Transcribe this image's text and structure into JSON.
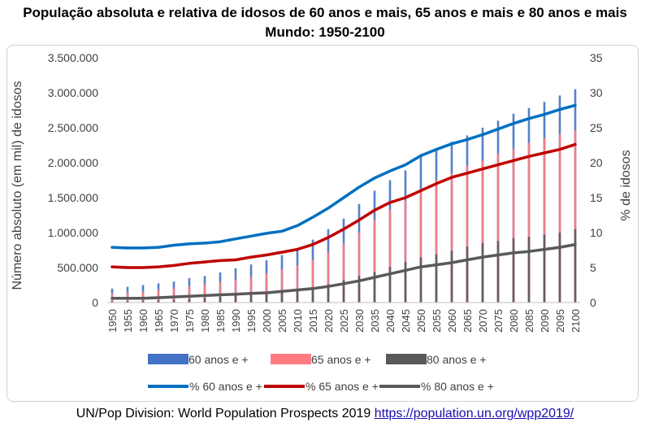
{
  "chart_data": {
    "type": "bar+line",
    "title": "População absoluta e relativa de idosos de 60 anos e mais, 65 anos e mais e 80 anos e mais",
    "subtitle": "Mundo: 1950-2100",
    "ylabel": "Número absoluto (em mil) de idosos",
    "y2label": "% de idosos",
    "ylim": [
      0,
      3500000
    ],
    "y2lim": [
      0,
      35
    ],
    "yticks": [
      "0",
      "500.000",
      "1.000.000",
      "1.500.000",
      "2.000.000",
      "2.500.000",
      "3.000.000",
      "3.500.000"
    ],
    "y2ticks": [
      "0",
      "5",
      "10",
      "15",
      "20",
      "25",
      "30",
      "35"
    ],
    "xticks": [
      "1950",
      "1955",
      "1960",
      "1965",
      "1970",
      "1975",
      "1980",
      "1985",
      "1990",
      "1995",
      "2000",
      "2005",
      "2010",
      "2015",
      "2020",
      "2025",
      "2030",
      "2035",
      "2040",
      "2045",
      "2050",
      "2055",
      "2060",
      "2065",
      "2070",
      "2075",
      "2080",
      "2085",
      "2090",
      "2095",
      "2100"
    ],
    "x": [
      1950,
      1955,
      1960,
      1965,
      1970,
      1975,
      1980,
      1985,
      1990,
      1995,
      2000,
      2005,
      2010,
      2015,
      2020,
      2025,
      2030,
      2035,
      2040,
      2045,
      2050,
      2055,
      2060,
      2065,
      2070,
      2075,
      2080,
      2085,
      2090,
      2095,
      2100
    ],
    "bar_series": [
      {
        "name": "60 anos e  +",
        "color": "#4472c4",
        "values": [
          200000,
          225000,
          250000,
          275000,
          300000,
          350000,
          380000,
          430000,
          490000,
          545000,
          605000,
          680000,
          770000,
          900000,
          1050000,
          1200000,
          1410000,
          1600000,
          1750000,
          1890000,
          2100000,
          2200000,
          2300000,
          2390000,
          2500000,
          2600000,
          2700000,
          2780000,
          2870000,
          2960000,
          3050000
        ]
      },
      {
        "name": "65 anos e +",
        "color": "#ff7c80",
        "values": [
          130000,
          150000,
          160000,
          185000,
          205000,
          230000,
          260000,
          295000,
          330000,
          370000,
          415000,
          470000,
          530000,
          610000,
          720000,
          850000,
          1000000,
          1180000,
          1330000,
          1460000,
          1620000,
          1750000,
          1850000,
          1960000,
          2030000,
          2130000,
          2200000,
          2280000,
          2350000,
          2410000,
          2460000
        ]
      },
      {
        "name": "80 anos e +",
        "color": "#595959",
        "values": [
          15000,
          22000,
          28000,
          33000,
          40000,
          55000,
          70000,
          85000,
          100000,
          115000,
          135000,
          160000,
          190000,
          220000,
          260000,
          320000,
          380000,
          440000,
          510000,
          580000,
          645000,
          690000,
          740000,
          800000,
          850000,
          880000,
          920000,
          940000,
          970000,
          1000000,
          1050000
        ]
      }
    ],
    "line_series": [
      {
        "name": "% 60 anos e  +",
        "color": "#0070c0",
        "values": [
          7.9,
          7.8,
          7.8,
          7.9,
          8.2,
          8.4,
          8.5,
          8.7,
          9.1,
          9.5,
          9.9,
          10.2,
          11.0,
          12.2,
          13.5,
          15.0,
          16.5,
          17.8,
          18.8,
          19.7,
          21.0,
          21.9,
          22.7,
          23.3,
          24.0,
          24.8,
          25.6,
          26.3,
          26.9,
          27.6,
          28.2
        ]
      },
      {
        "name": "% 65 anos e +",
        "color": "#c00000",
        "values": [
          5.1,
          5.0,
          5.0,
          5.1,
          5.3,
          5.6,
          5.8,
          6.0,
          6.1,
          6.5,
          6.8,
          7.2,
          7.6,
          8.3,
          9.3,
          10.5,
          11.8,
          13.2,
          14.3,
          15.0,
          16.0,
          17.0,
          17.9,
          18.5,
          19.1,
          19.7,
          20.3,
          20.9,
          21.4,
          21.9,
          22.6
        ]
      },
      {
        "name": "% 80 anos e +",
        "color": "#595959",
        "values": [
          0.6,
          0.6,
          0.6,
          0.7,
          0.8,
          0.9,
          1.0,
          1.1,
          1.2,
          1.3,
          1.4,
          1.6,
          1.8,
          2.0,
          2.3,
          2.7,
          3.1,
          3.6,
          4.1,
          4.6,
          5.1,
          5.4,
          5.7,
          6.1,
          6.5,
          6.8,
          7.1,
          7.3,
          7.6,
          7.9,
          8.3
        ]
      }
    ],
    "legend": {
      "placement": "bottom"
    },
    "grid": false
  },
  "source": {
    "text": "UN/Pop Division: World Population Prospects 2019 ",
    "link": "https://population.un.org/wpp2019/"
  }
}
